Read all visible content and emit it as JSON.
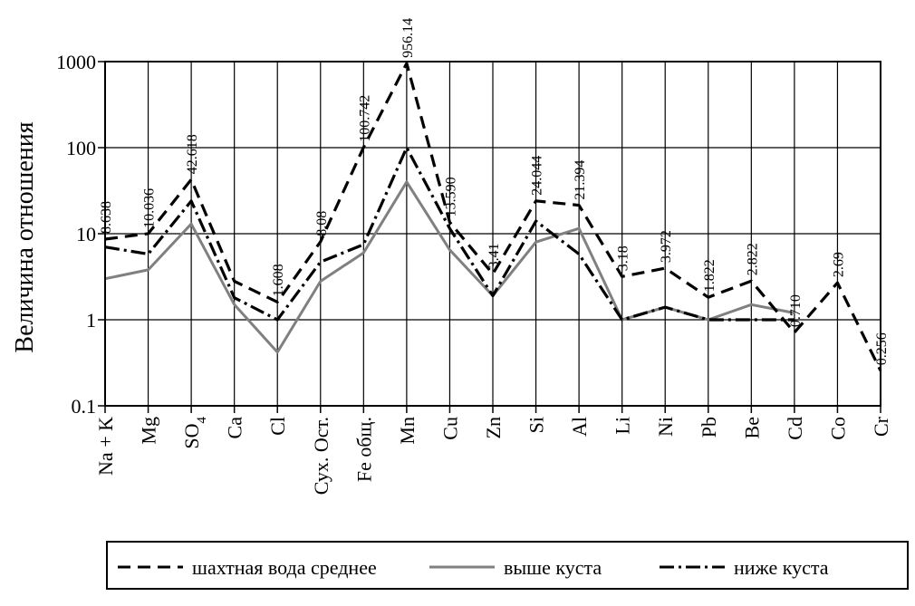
{
  "chart_data": {
    "type": "line",
    "ylabel": "Величина отношения",
    "yscale": "log",
    "ylim": [
      0.1,
      1000
    ],
    "yticks": [
      {
        "value": 0.1,
        "label": "0.1"
      },
      {
        "value": 1,
        "label": "1"
      },
      {
        "value": 10,
        "label": "10"
      },
      {
        "value": 100,
        "label": "100"
      },
      {
        "value": 1000,
        "label": "1000"
      }
    ],
    "grid": true,
    "legend_position": "bottom",
    "categories": [
      {
        "label": "Na + K"
      },
      {
        "label": "Mg"
      },
      {
        "label": "SO",
        "sub": "4"
      },
      {
        "label": "Ca"
      },
      {
        "label": "Cl"
      },
      {
        "label": "Сух. Ост."
      },
      {
        "label": "Fe общ."
      },
      {
        "label": "Mn"
      },
      {
        "label": "Cu"
      },
      {
        "label": "Zn"
      },
      {
        "label": "Si"
      },
      {
        "label": "Al"
      },
      {
        "label": "Li"
      },
      {
        "label": "Ni"
      },
      {
        "label": "Pb"
      },
      {
        "label": "Be"
      },
      {
        "label": "Cd"
      },
      {
        "label": "Co"
      },
      {
        "label": "Cr"
      }
    ],
    "series": [
      {
        "name": "шахтная вода среднее",
        "color": "#000000",
        "style": "dashed",
        "values": [
          8.638,
          10.036,
          42.618,
          2.8,
          1.608,
          8.08,
          100.742,
          956.14,
          13.59,
          3.41,
          24.044,
          21.394,
          3.18,
          3.972,
          1.822,
          2.822,
          0.71,
          2.69,
          0.256
        ],
        "labels": [
          "8.638",
          "10.036",
          "42.618",
          "",
          "1.608",
          "8.08",
          "100.742",
          "956.14",
          "13.590",
          "3.41",
          "24.044",
          "21.394",
          "3.18",
          "3.972",
          "1.822",
          "2.822",
          "0.710",
          "2.69",
          "0.256"
        ]
      },
      {
        "name": "выше куста",
        "color": "#808080",
        "style": "solid",
        "values": [
          3.0,
          3.8,
          13,
          1.5,
          0.42,
          2.8,
          6,
          40,
          6.5,
          1.9,
          8,
          11.5,
          1.0,
          1.4,
          1.0,
          1.5,
          1.2,
          null,
          null
        ]
      },
      {
        "name": "ниже куста",
        "color": "#000000",
        "style": "dashdot",
        "values": [
          7,
          5.8,
          24,
          1.8,
          1.0,
          4.7,
          7.5,
          100,
          11.5,
          1.9,
          14,
          5.8,
          1.0,
          1.4,
          1.0,
          1.0,
          1.0,
          null,
          null
        ]
      }
    ]
  }
}
